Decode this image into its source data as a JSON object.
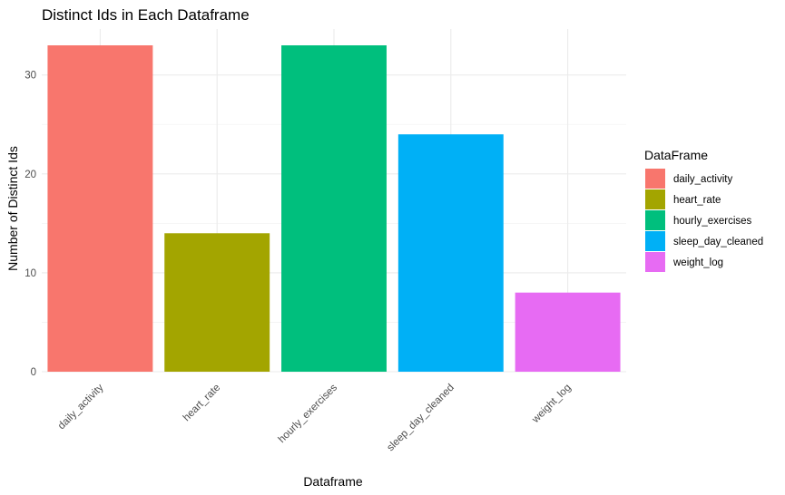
{
  "chart_data": {
    "type": "bar",
    "title": "Distinct Ids in Each Dataframe",
    "xlabel": "Dataframe",
    "ylabel": "Number of Distinct Ids",
    "categories": [
      "daily_activity",
      "heart_rate",
      "hourly_exercises",
      "sleep_day_cleaned",
      "weight_log"
    ],
    "values": [
      33,
      14,
      33,
      24,
      8
    ],
    "colors": [
      "#F8766D",
      "#A3A500",
      "#00BF7D",
      "#00B0F6",
      "#E76BF3"
    ],
    "ylim": [
      0,
      34.65
    ],
    "yticks": [
      0,
      10,
      20,
      30
    ],
    "grid": true,
    "legend": {
      "title": "DataFrame",
      "position": "right",
      "entries": [
        "daily_activity",
        "heart_rate",
        "hourly_exercises",
        "sleep_day_cleaned",
        "weight_log"
      ]
    }
  }
}
